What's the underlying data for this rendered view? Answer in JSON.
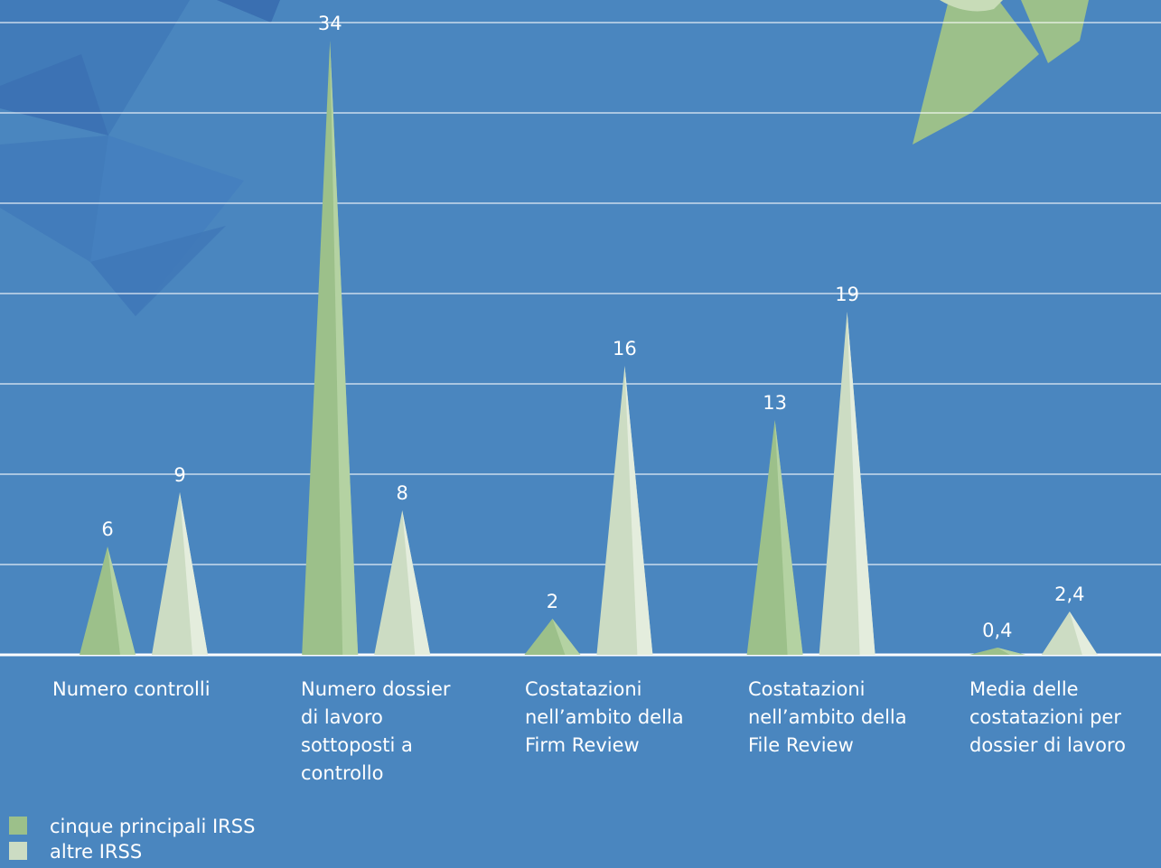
{
  "chart_data": {
    "type": "bar",
    "categories": [
      "Numero controlli",
      "Numero dossier\ndi lavoro\nsottoposti a\ncontrollo",
      "Costatazioni\nnell’ambito della\nFirm Review",
      "Costatazioni\nnell’ambito della\nFile Review",
      "Media delle\ncostatazioni per\ndossier di lavoro"
    ],
    "series": [
      {
        "name": "cinque principali IRSS",
        "color": "#9cc08a",
        "values": [
          6,
          34,
          2,
          13,
          0.4
        ],
        "value_labels": [
          "6",
          "34",
          "2",
          "13",
          "0,4"
        ]
      },
      {
        "name": "altre IRSS",
        "color": "#ccdcc3",
        "values": [
          9,
          8,
          16,
          19,
          2.4
        ],
        "value_labels": [
          "9",
          "8",
          "16",
          "19",
          "2,4"
        ]
      }
    ],
    "ylim": [
      0,
      35
    ],
    "yticks": [
      0,
      5,
      10,
      15,
      20,
      25,
      30,
      35
    ],
    "grid": true
  }
}
